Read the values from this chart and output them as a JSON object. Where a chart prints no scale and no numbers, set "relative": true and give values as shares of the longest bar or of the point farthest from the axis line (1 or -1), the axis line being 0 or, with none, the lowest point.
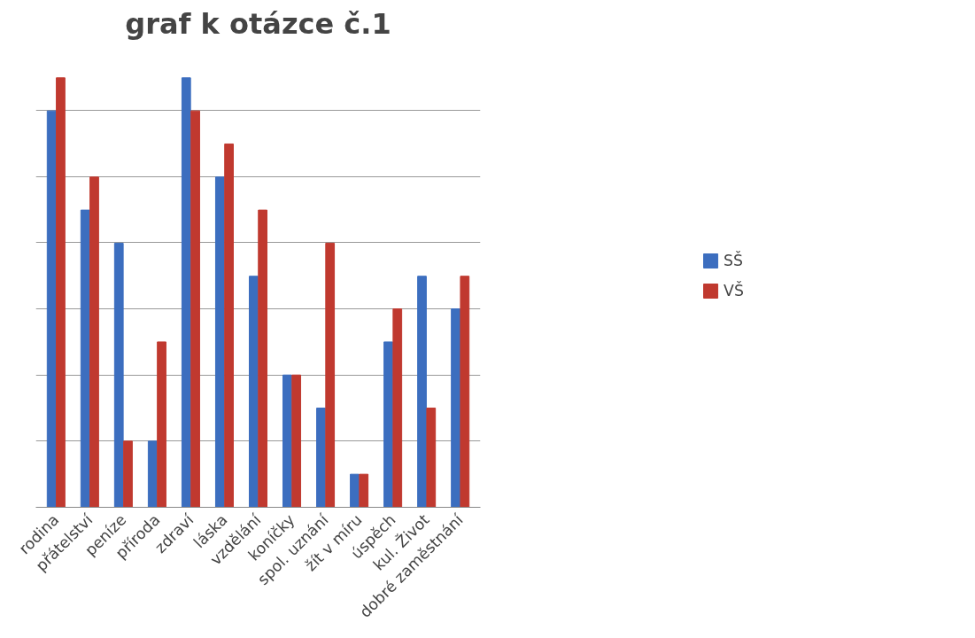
{
  "chart_data": {
    "type": "bar",
    "title": "graf k otázce č.1",
    "relative": true,
    "grid": "y",
    "legend": "right",
    "categories": [
      "rodina",
      "přátelství",
      "peníze",
      "příroda",
      "zdraví",
      "láska",
      "vzdělání",
      "koníčky",
      "spol. uznání",
      "žít v míru",
      "úspěch",
      "kul. Život",
      "dobré zaměstnání"
    ],
    "series": [
      {
        "name": "SŠ",
        "color": "#3c6ebf",
        "values": [
          0.923,
          0.692,
          0.615,
          0.154,
          1,
          0.769,
          0.538,
          0.308,
          0.231,
          0.077,
          0.385,
          0.538,
          0.462
        ]
      },
      {
        "name": "VŠ",
        "color": "#c0392f",
        "values": [
          1,
          0.769,
          0.154,
          0.385,
          0.923,
          0.846,
          0.692,
          0.308,
          0.615,
          0.077,
          0.462,
          0.231,
          0.538
        ]
      }
    ]
  }
}
